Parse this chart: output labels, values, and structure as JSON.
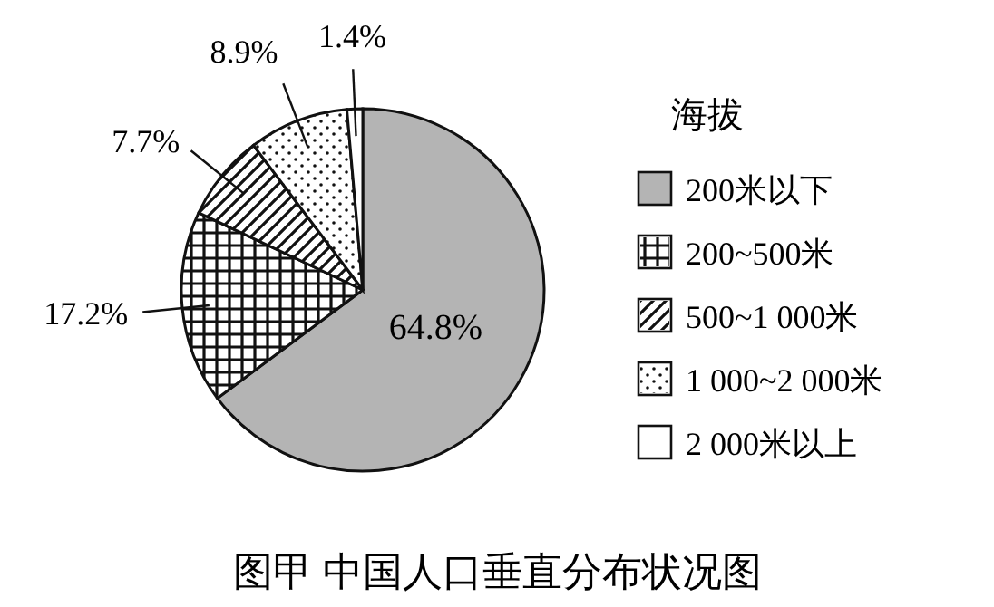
{
  "chart_data": {
    "type": "pie",
    "title": "图甲  中国人口垂直分布状况图",
    "legend_title": "海拔",
    "categories": [
      "200米以下",
      "200~500米",
      "500~1 000米",
      "1 000~2 000米",
      "2 000米以上"
    ],
    "values": [
      64.8,
      17.2,
      7.7,
      8.9,
      1.4
    ],
    "value_labels": [
      "64.8%",
      "17.2%",
      "7.7%",
      "8.9%",
      "1.4%"
    ],
    "colors": [
      "#b4b4b4",
      "#ffffff",
      "#ffffff",
      "#ffffff",
      "#ffffff"
    ],
    "legend": "right"
  }
}
